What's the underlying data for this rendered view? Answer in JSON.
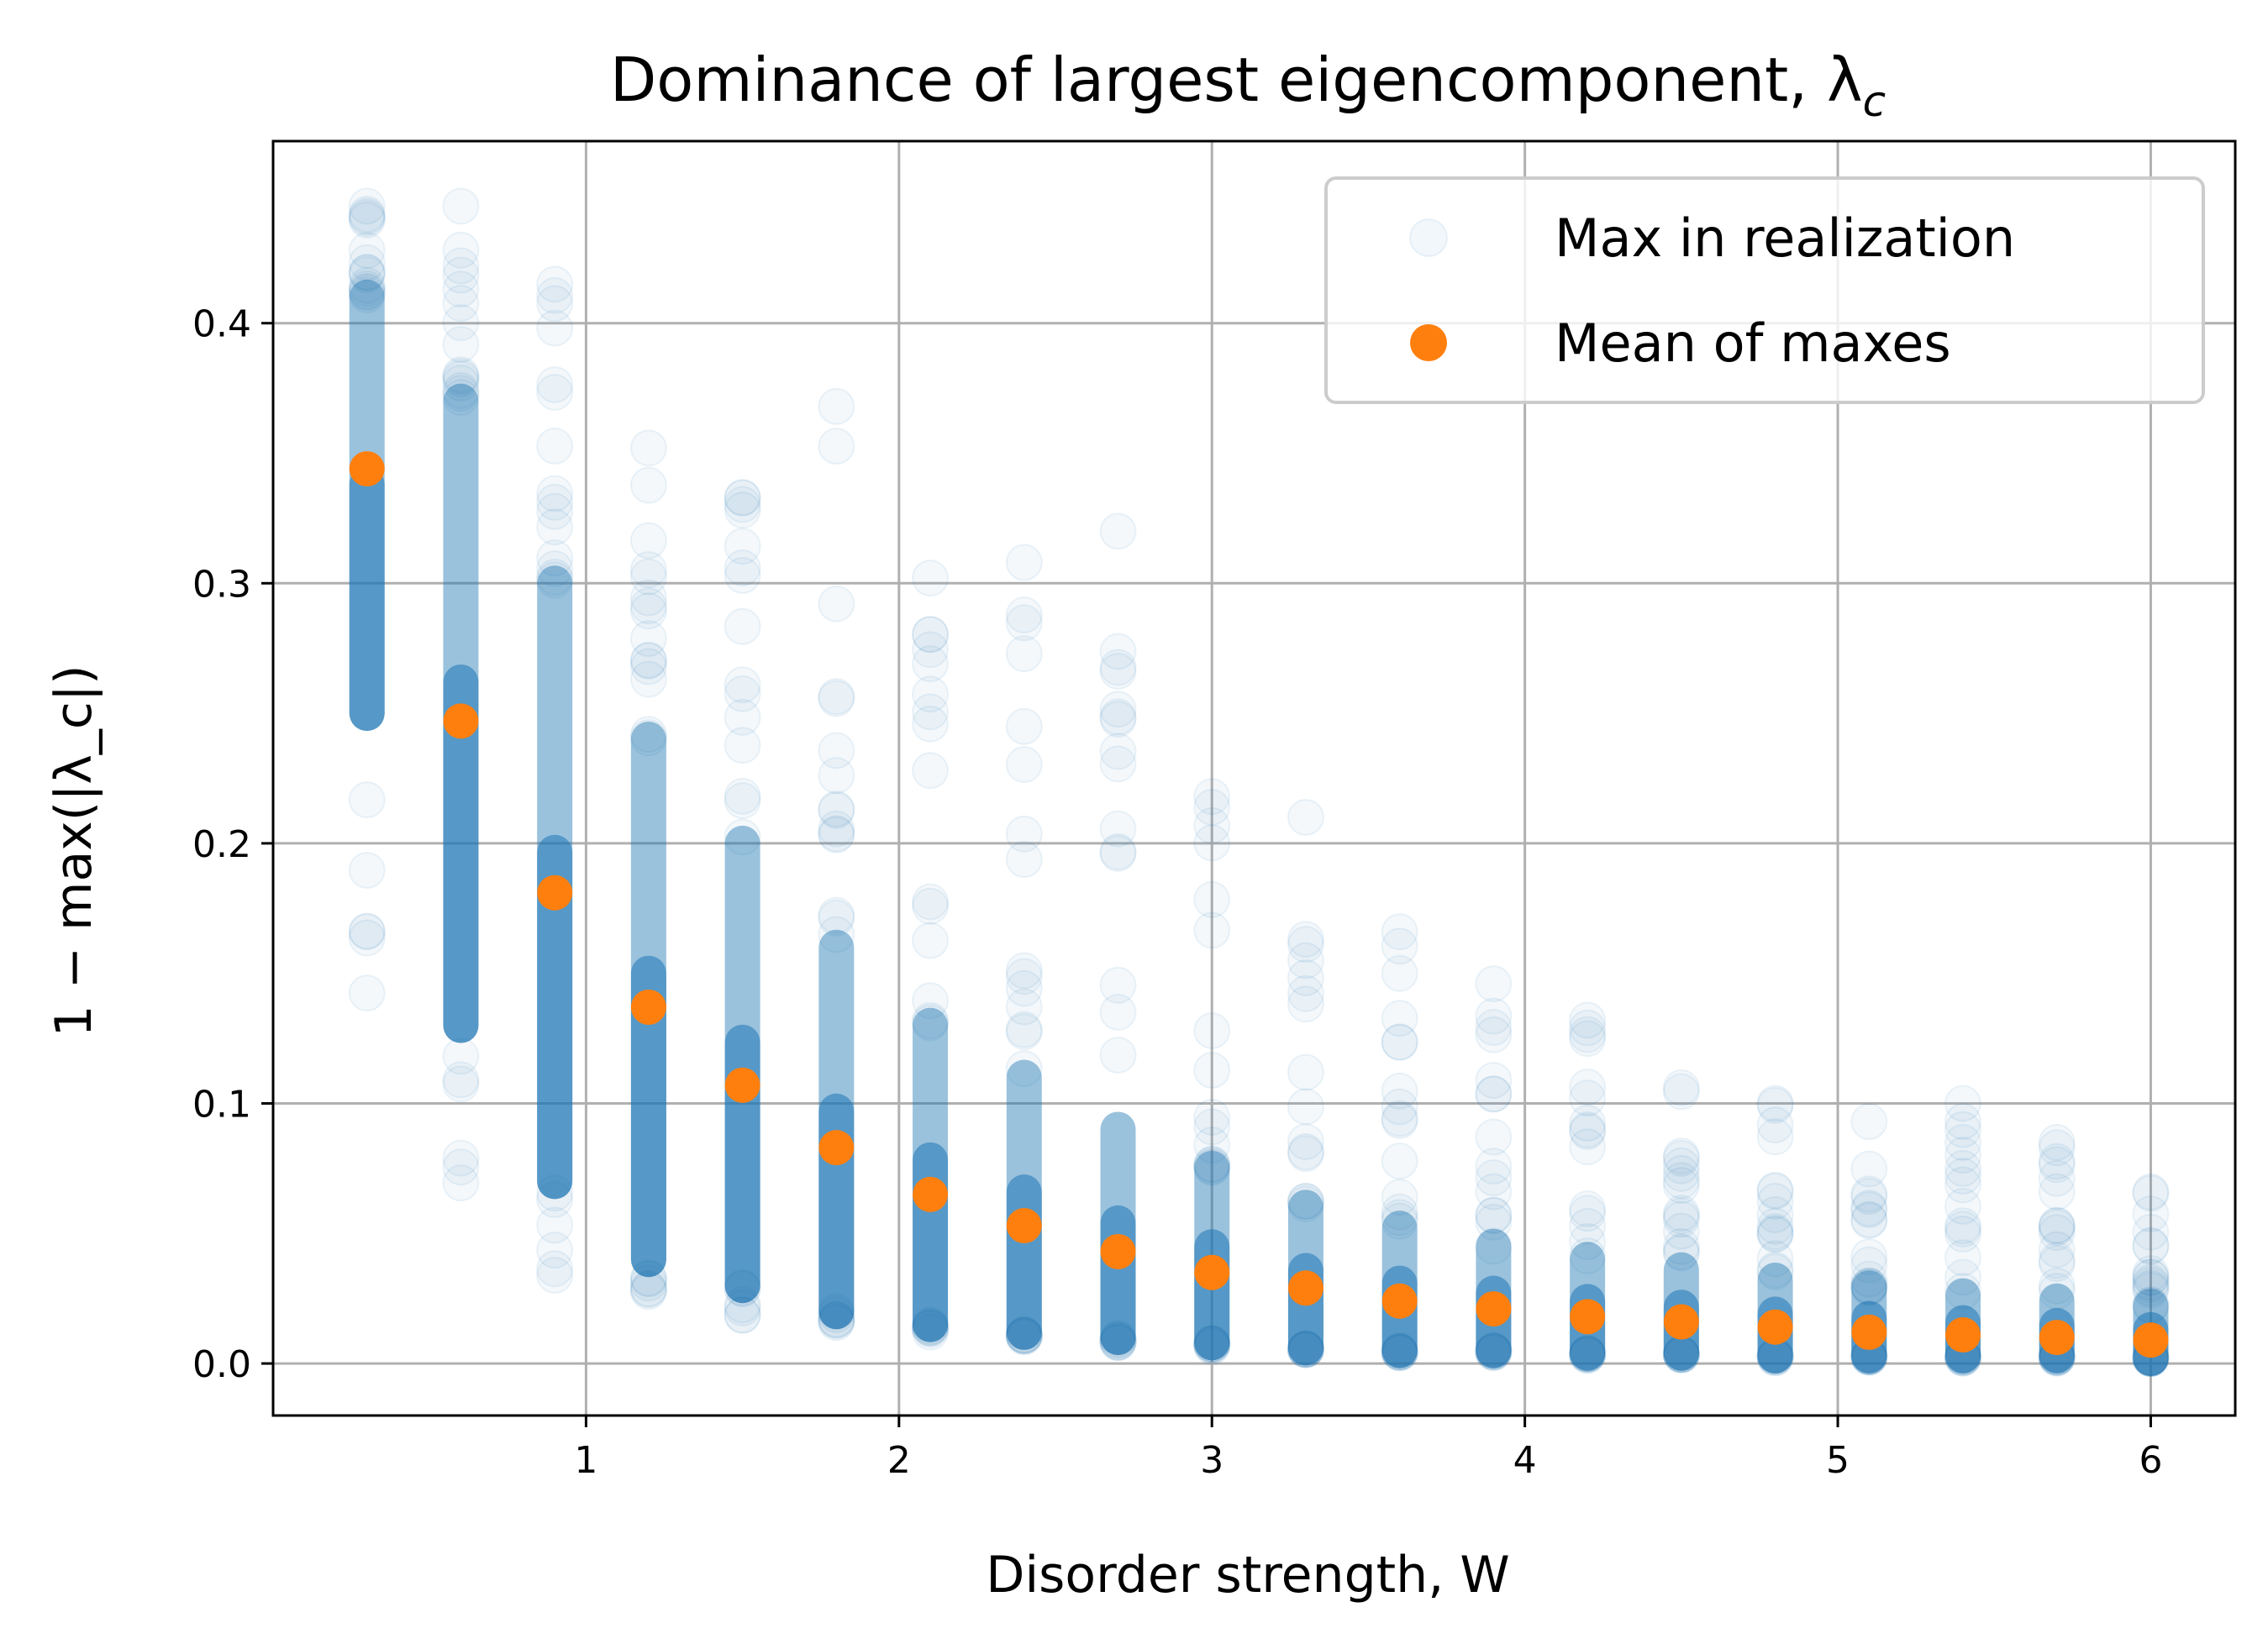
{
  "chart_data": {
    "type": "scatter",
    "title": "Dominance of largest eigencomponent, λ",
    "title_subscript": "c",
    "xlabel": "Disorder strength, W",
    "ylabel": "1 − max(|λ_c|)",
    "xlim": [
      0.0,
      6.27
    ],
    "ylim": [
      -0.02,
      0.47
    ],
    "xticks": [
      1,
      2,
      3,
      4,
      5,
      6
    ],
    "xtick_labels": [
      "1",
      "2",
      "3",
      "4",
      "5",
      "6"
    ],
    "yticks": [
      0.0,
      0.1,
      0.2,
      0.3,
      0.4
    ],
    "ytick_labels": [
      "0.0",
      "0.1",
      "0.2",
      "0.3",
      "0.4"
    ],
    "grid": true,
    "legend_position": "top-right",
    "colors": {
      "realization": "#1f77b4",
      "mean": "#ff7f0e"
    },
    "series": [
      {
        "name": "Max in realization",
        "style": "faint-points",
        "x": [
          0.3,
          0.6,
          0.9,
          1.2,
          1.5,
          1.8,
          2.1,
          2.4,
          2.7,
          3.0,
          3.3,
          3.6,
          3.9,
          4.2,
          4.5,
          4.8,
          5.1,
          5.4,
          5.7,
          6.0
        ],
        "dense_range": [
          [
            0.25,
            0.41
          ],
          [
            0.13,
            0.37
          ],
          [
            0.07,
            0.3
          ],
          [
            0.04,
            0.24
          ],
          [
            0.03,
            0.2
          ],
          [
            0.02,
            0.16
          ],
          [
            0.015,
            0.13
          ],
          [
            0.012,
            0.11
          ],
          [
            0.01,
            0.09
          ],
          [
            0.008,
            0.075
          ],
          [
            0.006,
            0.06
          ],
          [
            0.005,
            0.052
          ],
          [
            0.005,
            0.045
          ],
          [
            0.004,
            0.04
          ],
          [
            0.004,
            0.036
          ],
          [
            0.003,
            0.032
          ],
          [
            0.003,
            0.029
          ],
          [
            0.003,
            0.026
          ],
          [
            0.003,
            0.024
          ],
          [
            0.002,
            0.022
          ]
        ],
        "full_range": [
          [
            0.13,
            0.445
          ],
          [
            0.055,
            0.445
          ],
          [
            0.03,
            0.415
          ],
          [
            0.022,
            0.352
          ],
          [
            0.018,
            0.333
          ],
          [
            0.014,
            0.368
          ],
          [
            0.012,
            0.302
          ],
          [
            0.01,
            0.308
          ],
          [
            0.008,
            0.32
          ],
          [
            0.006,
            0.218
          ],
          [
            0.005,
            0.21
          ],
          [
            0.004,
            0.166
          ],
          [
            0.004,
            0.146
          ],
          [
            0.003,
            0.132
          ],
          [
            0.003,
            0.106
          ],
          [
            0.002,
            0.1
          ],
          [
            0.002,
            0.093
          ],
          [
            0.002,
            0.1
          ],
          [
            0.002,
            0.085
          ],
          [
            0.002,
            0.066
          ]
        ]
      },
      {
        "name": "Mean of maxes",
        "style": "solid-points",
        "x": [
          0.3,
          0.6,
          0.9,
          1.2,
          1.5,
          1.8,
          2.1,
          2.4,
          2.7,
          3.0,
          3.3,
          3.6,
          3.9,
          4.2,
          4.5,
          4.8,
          5.1,
          5.4,
          5.7,
          6.0
        ],
        "y": [
          0.344,
          0.247,
          0.181,
          0.137,
          0.107,
          0.083,
          0.065,
          0.053,
          0.043,
          0.035,
          0.029,
          0.024,
          0.021,
          0.018,
          0.016,
          0.014,
          0.012,
          0.011,
          0.01,
          0.009
        ]
      }
    ]
  }
}
